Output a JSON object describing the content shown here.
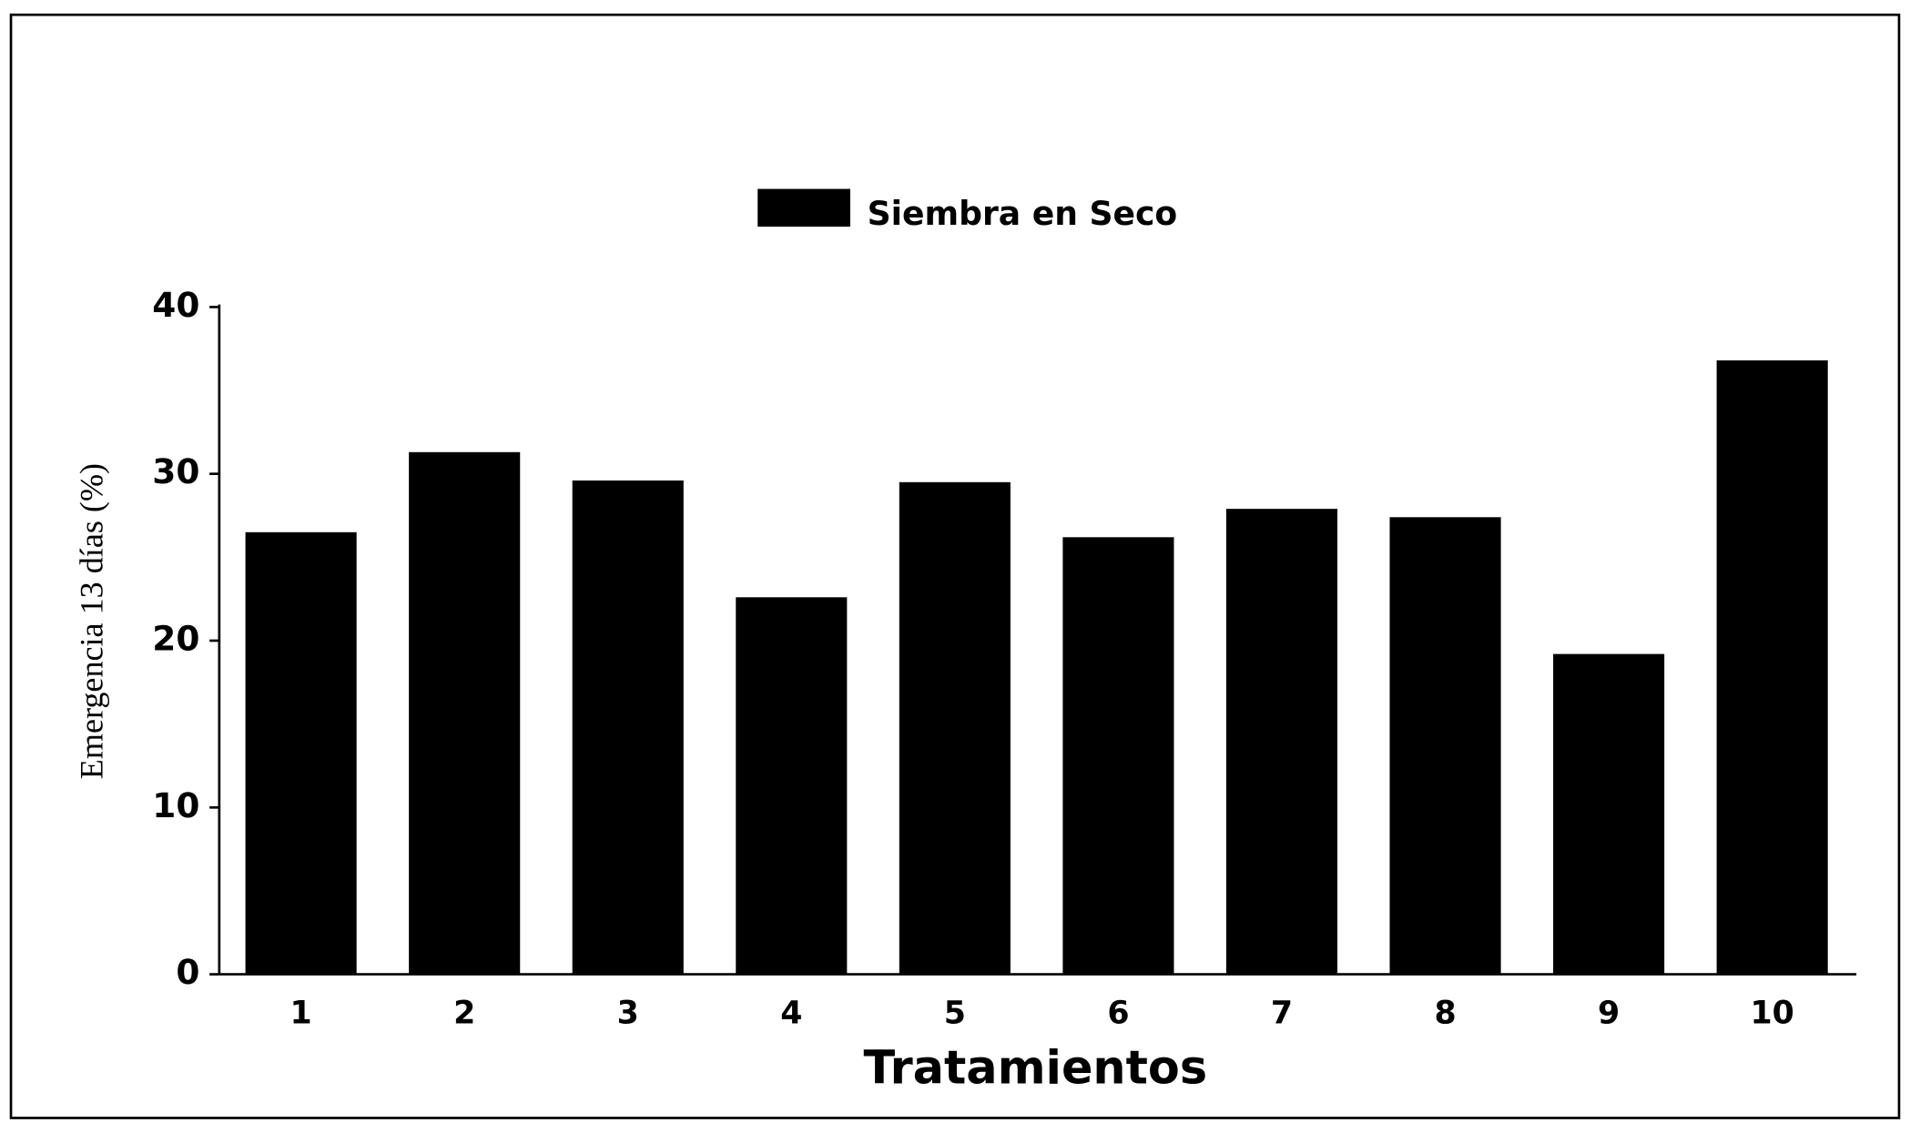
{
  "chart_data": {
    "type": "bar",
    "legend": "Siembra en Seco",
    "xlabel": "Tratamientos",
    "ylabel": "Emergencia 13 días (%)",
    "categories": [
      "1",
      "2",
      "3",
      "4",
      "5",
      "6",
      "7",
      "8",
      "9",
      "10"
    ],
    "values": [
      26.5,
      31.3,
      29.6,
      22.6,
      29.5,
      26.2,
      27.9,
      27.4,
      19.2,
      36.8
    ],
    "color": "#000000",
    "ylim": [
      0,
      40
    ],
    "yticks": [
      0,
      10,
      20,
      30,
      40
    ]
  }
}
